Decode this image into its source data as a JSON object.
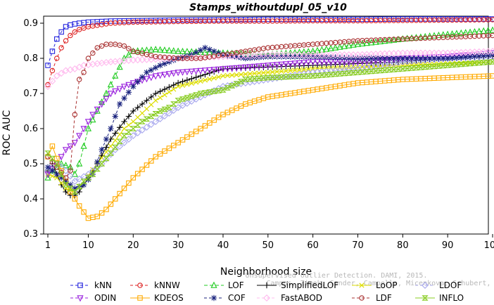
{
  "chart_data": {
    "type": "line",
    "title": "Stamps_withoutdupl_05_v10",
    "xlabel": "Neighborhood size",
    "ylabel": "ROC AUC",
    "xlim": [
      1,
      100
    ],
    "ylim": [
      0.3,
      0.92
    ],
    "xticks": [
      1,
      10,
      20,
      30,
      40,
      50,
      60,
      70,
      80,
      90,
      100
    ],
    "yticks": [
      0.3,
      0.4,
      0.5,
      0.6,
      0.7,
      0.8,
      0.9
    ],
    "grid": false,
    "legend_position": "bottom",
    "series": [
      {
        "name": "kNN",
        "color": "#2222dd",
        "dash": "4,3",
        "marker": "square",
        "points": [
          [
            1,
            0.78
          ],
          [
            2,
            0.82
          ],
          [
            3,
            0.855
          ],
          [
            4,
            0.875
          ],
          [
            5,
            0.89
          ],
          [
            6,
            0.895
          ],
          [
            7,
            0.898
          ],
          [
            8,
            0.9
          ],
          [
            10,
            0.903
          ],
          [
            15,
            0.906
          ],
          [
            20,
            0.907
          ],
          [
            30,
            0.909
          ],
          [
            40,
            0.91
          ],
          [
            50,
            0.911
          ],
          [
            60,
            0.911
          ],
          [
            70,
            0.911
          ],
          [
            80,
            0.912
          ],
          [
            90,
            0.912
          ],
          [
            100,
            0.912
          ]
        ]
      },
      {
        "name": "kNNW",
        "color": "#dd2222",
        "dash": "4,3",
        "marker": "circle",
        "points": [
          [
            1,
            0.725
          ],
          [
            2,
            0.765
          ],
          [
            3,
            0.8
          ],
          [
            4,
            0.83
          ],
          [
            5,
            0.85
          ],
          [
            6,
            0.865
          ],
          [
            7,
            0.875
          ],
          [
            8,
            0.882
          ],
          [
            10,
            0.89
          ],
          [
            15,
            0.9
          ],
          [
            20,
            0.903
          ],
          [
            30,
            0.905
          ],
          [
            40,
            0.906
          ],
          [
            50,
            0.906
          ],
          [
            60,
            0.907
          ],
          [
            70,
            0.907
          ],
          [
            80,
            0.908
          ],
          [
            90,
            0.909
          ],
          [
            100,
            0.91
          ]
        ]
      },
      {
        "name": "LOF",
        "color": "#22cc22",
        "dash": "5,3",
        "marker": "triangle-up",
        "points": [
          [
            1,
            0.46
          ],
          [
            2,
            0.48
          ],
          [
            4,
            0.5
          ],
          [
            6,
            0.49
          ],
          [
            7,
            0.47
          ],
          [
            8,
            0.5
          ],
          [
            10,
            0.6
          ],
          [
            12,
            0.65
          ],
          [
            14,
            0.7
          ],
          [
            16,
            0.75
          ],
          [
            18,
            0.8
          ],
          [
            20,
            0.82
          ],
          [
            25,
            0.825
          ],
          [
            30,
            0.82
          ],
          [
            40,
            0.815
          ],
          [
            50,
            0.81
          ],
          [
            60,
            0.82
          ],
          [
            70,
            0.84
          ],
          [
            80,
            0.855
          ],
          [
            90,
            0.868
          ],
          [
            100,
            0.88
          ]
        ]
      },
      {
        "name": "SimplifiedLOF",
        "color": "#000000",
        "dash": "",
        "marker": "plus",
        "points": [
          [
            1,
            0.48
          ],
          [
            2,
            0.5
          ],
          [
            3,
            0.47
          ],
          [
            4,
            0.44
          ],
          [
            5,
            0.42
          ],
          [
            6,
            0.41
          ],
          [
            7,
            0.41
          ],
          [
            8,
            0.42
          ],
          [
            9,
            0.44
          ],
          [
            10,
            0.46
          ],
          [
            12,
            0.5
          ],
          [
            15,
            0.57
          ],
          [
            18,
            0.62
          ],
          [
            20,
            0.65
          ],
          [
            25,
            0.7
          ],
          [
            30,
            0.73
          ],
          [
            35,
            0.75
          ],
          [
            40,
            0.77
          ],
          [
            50,
            0.775
          ],
          [
            60,
            0.78
          ],
          [
            70,
            0.785
          ],
          [
            80,
            0.79
          ],
          [
            90,
            0.8
          ],
          [
            100,
            0.805
          ]
        ]
      },
      {
        "name": "LoOP",
        "color": "#dddd00",
        "dash": "",
        "marker": "x",
        "points": [
          [
            1,
            0.47
          ],
          [
            3,
            0.46
          ],
          [
            5,
            0.43
          ],
          [
            7,
            0.42
          ],
          [
            9,
            0.45
          ],
          [
            12,
            0.5
          ],
          [
            15,
            0.55
          ],
          [
            18,
            0.6
          ],
          [
            20,
            0.62
          ],
          [
            25,
            0.68
          ],
          [
            30,
            0.72
          ],
          [
            40,
            0.75
          ],
          [
            50,
            0.76
          ],
          [
            60,
            0.77
          ],
          [
            70,
            0.775
          ],
          [
            80,
            0.78
          ],
          [
            90,
            0.785
          ],
          [
            100,
            0.79
          ]
        ]
      },
      {
        "name": "LDOF",
        "color": "#aaaaee",
        "dash": "4,3",
        "marker": "diamond",
        "points": [
          [
            1,
            0.48
          ],
          [
            3,
            0.5
          ],
          [
            5,
            0.48
          ],
          [
            7,
            0.45
          ],
          [
            10,
            0.47
          ],
          [
            13,
            0.5
          ],
          [
            16,
            0.54
          ],
          [
            20,
            0.58
          ],
          [
            25,
            0.62
          ],
          [
            30,
            0.66
          ],
          [
            35,
            0.69
          ],
          [
            40,
            0.72
          ],
          [
            50,
            0.74
          ],
          [
            60,
            0.76
          ],
          [
            70,
            0.77
          ],
          [
            80,
            0.79
          ],
          [
            90,
            0.8
          ],
          [
            100,
            0.805
          ]
        ]
      },
      {
        "name": "ODIN",
        "color": "#9922dd",
        "dash": "4,3",
        "marker": "triangle-down",
        "points": [
          [
            1,
            0.47
          ],
          [
            3,
            0.5
          ],
          [
            5,
            0.54
          ],
          [
            7,
            0.56
          ],
          [
            9,
            0.6
          ],
          [
            11,
            0.64
          ],
          [
            13,
            0.67
          ],
          [
            15,
            0.7
          ],
          [
            18,
            0.72
          ],
          [
            20,
            0.73
          ],
          [
            25,
            0.75
          ],
          [
            30,
            0.76
          ],
          [
            40,
            0.77
          ],
          [
            50,
            0.78
          ],
          [
            60,
            0.79
          ],
          [
            70,
            0.79
          ],
          [
            80,
            0.8
          ],
          [
            90,
            0.805
          ],
          [
            100,
            0.815
          ]
        ]
      },
      {
        "name": "KDEOS",
        "color": "#ffaa00",
        "dash": "",
        "marker": "square",
        "points": [
          [
            1,
            0.52
          ],
          [
            2,
            0.55
          ],
          [
            4,
            0.48
          ],
          [
            6,
            0.42
          ],
          [
            8,
            0.38
          ],
          [
            10,
            0.345
          ],
          [
            12,
            0.35
          ],
          [
            14,
            0.37
          ],
          [
            16,
            0.4
          ],
          [
            18,
            0.43
          ],
          [
            20,
            0.46
          ],
          [
            25,
            0.52
          ],
          [
            30,
            0.56
          ],
          [
            35,
            0.6
          ],
          [
            40,
            0.64
          ],
          [
            45,
            0.67
          ],
          [
            50,
            0.69
          ],
          [
            60,
            0.71
          ],
          [
            70,
            0.73
          ],
          [
            80,
            0.74
          ],
          [
            90,
            0.745
          ],
          [
            100,
            0.75
          ]
        ]
      },
      {
        "name": "COF",
        "color": "#1a237e",
        "dash": "4,3",
        "marker": "star",
        "points": [
          [
            1,
            0.49
          ],
          [
            3,
            0.47
          ],
          [
            5,
            0.45
          ],
          [
            7,
            0.43
          ],
          [
            9,
            0.44
          ],
          [
            11,
            0.47
          ],
          [
            13,
            0.54
          ],
          [
            15,
            0.6
          ],
          [
            17,
            0.67
          ],
          [
            20,
            0.72
          ],
          [
            23,
            0.76
          ],
          [
            26,
            0.78
          ],
          [
            30,
            0.8
          ],
          [
            33,
            0.81
          ],
          [
            36,
            0.83
          ],
          [
            40,
            0.81
          ],
          [
            45,
            0.8
          ],
          [
            50,
            0.805
          ],
          [
            60,
            0.805
          ],
          [
            70,
            0.8
          ],
          [
            80,
            0.8
          ],
          [
            90,
            0.8
          ],
          [
            100,
            0.81
          ]
        ]
      },
      {
        "name": "FastABOD",
        "color": "#ffbbee",
        "dash": "4,3",
        "marker": "diamond",
        "points": [
          [
            1,
            0.72
          ],
          [
            3,
            0.75
          ],
          [
            5,
            0.765
          ],
          [
            7,
            0.77
          ],
          [
            9,
            0.78
          ],
          [
            12,
            0.785
          ],
          [
            15,
            0.79
          ],
          [
            20,
            0.795
          ],
          [
            30,
            0.8
          ],
          [
            40,
            0.805
          ],
          [
            50,
            0.81
          ],
          [
            60,
            0.81
          ],
          [
            70,
            0.81
          ],
          [
            80,
            0.815
          ],
          [
            90,
            0.815
          ],
          [
            100,
            0.82
          ]
        ]
      },
      {
        "name": "LDF",
        "color": "#aa3333",
        "dash": "4,3",
        "marker": "circle",
        "points": [
          [
            1,
            0.52
          ],
          [
            3,
            0.49
          ],
          [
            5,
            0.46
          ],
          [
            6,
            0.48
          ],
          [
            7,
            0.64
          ],
          [
            8,
            0.74
          ],
          [
            9,
            0.76
          ],
          [
            10,
            0.8
          ],
          [
            12,
            0.83
          ],
          [
            14,
            0.84
          ],
          [
            16,
            0.84
          ],
          [
            18,
            0.835
          ],
          [
            20,
            0.82
          ],
          [
            25,
            0.805
          ],
          [
            30,
            0.8
          ],
          [
            35,
            0.8
          ],
          [
            40,
            0.81
          ],
          [
            50,
            0.83
          ],
          [
            60,
            0.84
          ],
          [
            70,
            0.85
          ],
          [
            80,
            0.855
          ],
          [
            90,
            0.86
          ],
          [
            100,
            0.865
          ]
        ]
      },
      {
        "name": "INFLO",
        "color": "#88cc22",
        "dash": "",
        "marker": "hex",
        "points": [
          [
            1,
            0.53
          ],
          [
            3,
            0.5
          ],
          [
            5,
            0.44
          ],
          [
            7,
            0.42
          ],
          [
            9,
            0.45
          ],
          [
            11,
            0.47
          ],
          [
            13,
            0.5
          ],
          [
            15,
            0.53
          ],
          [
            18,
            0.58
          ],
          [
            20,
            0.6
          ],
          [
            22,
            0.62
          ],
          [
            26,
            0.65
          ],
          [
            28,
            0.66
          ],
          [
            30,
            0.68
          ],
          [
            35,
            0.7
          ],
          [
            40,
            0.71
          ],
          [
            45,
            0.74
          ],
          [
            50,
            0.745
          ],
          [
            60,
            0.75
          ],
          [
            70,
            0.76
          ],
          [
            80,
            0.77
          ],
          [
            90,
            0.78
          ],
          [
            100,
            0.79
          ]
        ]
      }
    ],
    "legend": [
      [
        "kNN",
        "kNNW",
        "LOF",
        "SimplifiedLOF",
        "LoOP",
        "LDOF"
      ],
      [
        "ODIN",
        "KDEOS",
        "COF",
        "FastABOD",
        "LDF",
        "INFLO"
      ]
    ]
  },
  "watermark": {
    "line1": "Unsupervised Outlier Detection. DAMI, 2015.",
    "line2": "Campos, Zimek, Sander, Campello, Micenkova, Schubert, Assent, Houle"
  }
}
